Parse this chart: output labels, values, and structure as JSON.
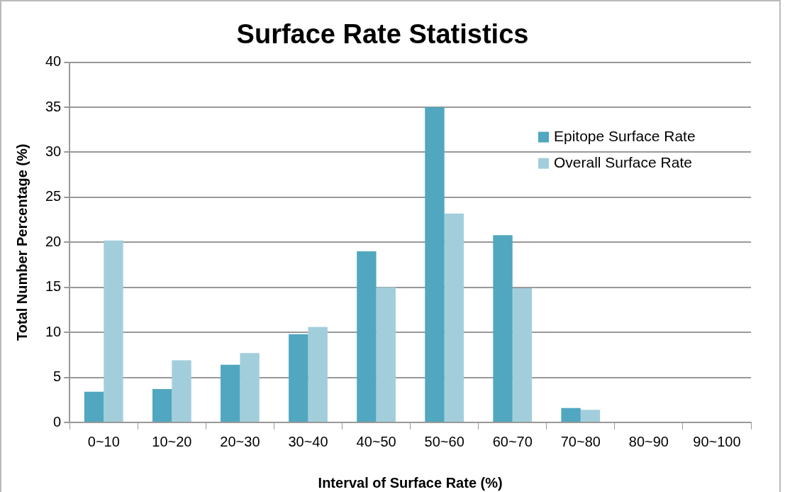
{
  "chart_data": {
    "type": "bar",
    "title": "Surface Rate Statistics",
    "xlabel": "Interval of Surface Rate (%)",
    "ylabel": "Total Number Percentage (%)",
    "categories": [
      "0~10",
      "10~20",
      "20~30",
      "30~40",
      "40~50",
      "50~60",
      "60~70",
      "70~80",
      "80~90",
      "90~100"
    ],
    "series": [
      {
        "name": "Epitope Surface Rate",
        "color": "#50a7bf",
        "values": [
          3.4,
          3.7,
          6.4,
          9.8,
          19.0,
          35.0,
          20.8,
          1.6,
          0,
          0
        ]
      },
      {
        "name": "Overall Surface Rate",
        "color": "#a2cedc",
        "values": [
          20.2,
          6.9,
          7.7,
          10.6,
          15.0,
          23.2,
          14.9,
          1.4,
          0,
          0
        ]
      }
    ],
    "ylim": [
      0,
      40
    ],
    "yticks": [
      0,
      5,
      10,
      15,
      20,
      25,
      30,
      35,
      40
    ],
    "grid": "y",
    "legend": "top right"
  }
}
